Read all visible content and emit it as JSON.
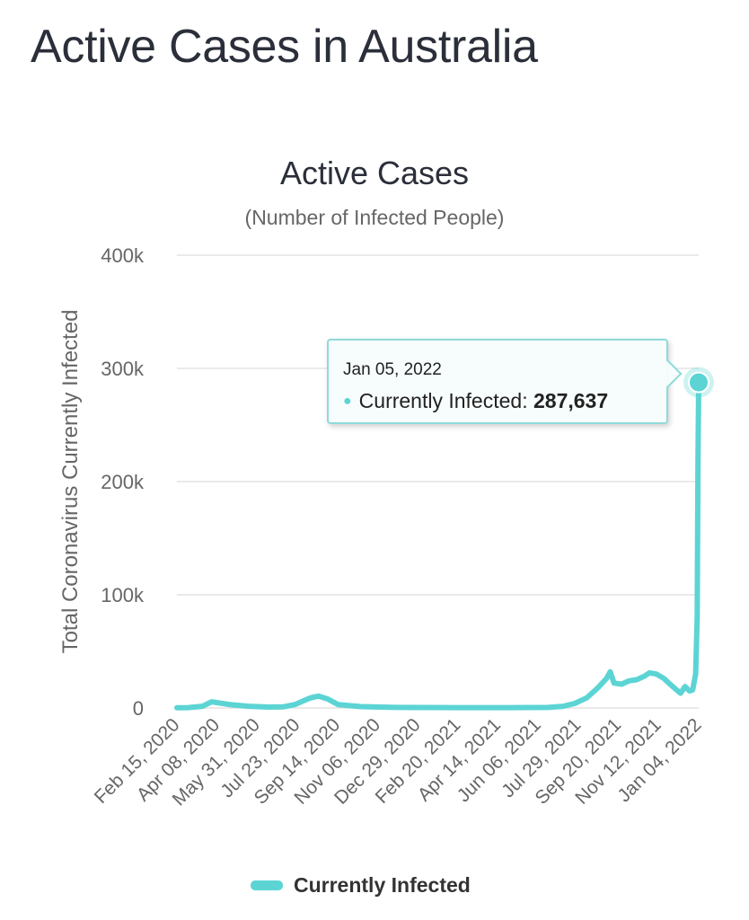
{
  "page": {
    "title": "Active Cases in Australia"
  },
  "tooltip": {
    "date": "Jan 05, 2022",
    "series_label": "Currently Infected:",
    "value": "287,637"
  },
  "chart_data": {
    "type": "line",
    "title": "Active Cases",
    "subtitle": "(Number of Infected People)",
    "ylabel": "Total Coronavirus Currently Infected",
    "xlabel": "",
    "ylim": [
      0,
      400000
    ],
    "y_ticks": [
      0,
      100000,
      200000,
      300000,
      400000
    ],
    "y_tick_labels": [
      "0",
      "100k",
      "200k",
      "300k",
      "400k"
    ],
    "x_tick_labels": [
      "Feb 15, 2020",
      "Apr 08, 2020",
      "May 31, 2020",
      "Jul 23, 2020",
      "Sep 14, 2020",
      "Nov 06, 2020",
      "Dec 29, 2020",
      "Feb 20, 2021",
      "Apr 14, 2021",
      "Jun 06, 2021",
      "Jul 29, 2021",
      "Sep 20, 2021",
      "Nov 12, 2021",
      "Jan 04, 2022"
    ],
    "x_range": [
      "2020-02-15",
      "2022-01-05"
    ],
    "grid": true,
    "legend_position": "bottom",
    "color": "#5cd4d4",
    "series": [
      {
        "name": "Currently Infected",
        "x": [
          "2020-02-15",
          "2020-03-01",
          "2020-03-20",
          "2020-04-01",
          "2020-04-10",
          "2020-04-25",
          "2020-05-20",
          "2020-06-15",
          "2020-07-05",
          "2020-07-20",
          "2020-08-01",
          "2020-08-10",
          "2020-08-20",
          "2020-09-01",
          "2020-09-15",
          "2020-10-15",
          "2020-12-01",
          "2021-01-15",
          "2021-03-01",
          "2021-05-01",
          "2021-06-20",
          "2021-07-10",
          "2021-07-25",
          "2021-08-10",
          "2021-08-25",
          "2021-09-05",
          "2021-09-10",
          "2021-09-15",
          "2021-09-25",
          "2021-10-05",
          "2021-10-15",
          "2021-10-25",
          "2021-11-01",
          "2021-11-10",
          "2021-11-20",
          "2021-11-28",
          "2021-12-05",
          "2021-12-12",
          "2021-12-18",
          "2021-12-24",
          "2021-12-28",
          "2022-01-01",
          "2022-01-03",
          "2022-01-04",
          "2022-01-05"
        ],
        "y": [
          200,
          300,
          1500,
          5500,
          4500,
          3000,
          1500,
          800,
          1000,
          3000,
          6500,
          9000,
          10500,
          8000,
          3000,
          1200,
          500,
          400,
          300,
          300,
          500,
          1500,
          4000,
          9000,
          18000,
          26000,
          32000,
          22000,
          21000,
          24000,
          25000,
          28000,
          31000,
          30000,
          26000,
          21000,
          17000,
          13000,
          19000,
          15000,
          16000,
          30000,
          80000,
          220000,
          287637
        ]
      }
    ]
  }
}
